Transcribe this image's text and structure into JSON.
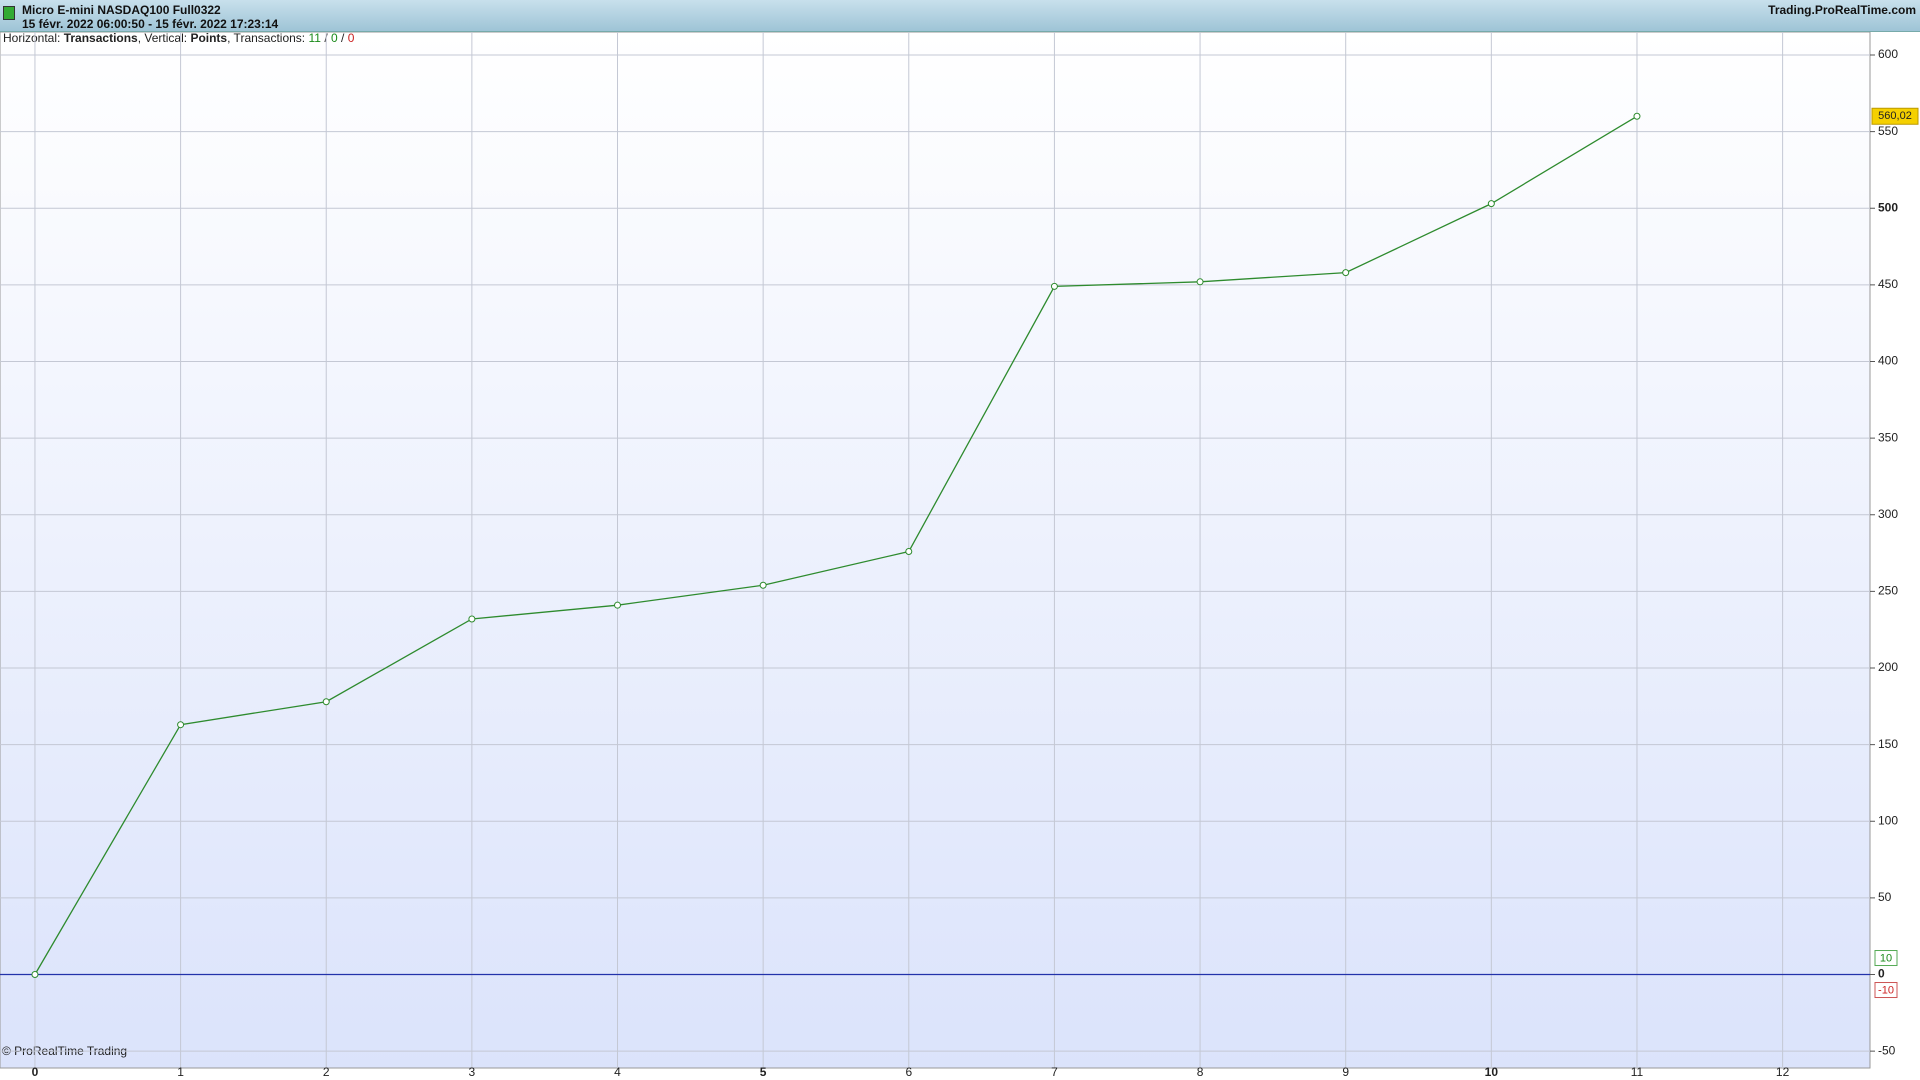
{
  "header": {
    "instrument": "Micro E-mini NASDAQ100 Full0322",
    "period": "15 févr. 2022 06:00:50 - 15 févr. 2022 17:23:14",
    "site": "Trading.ProRealTime.com"
  },
  "info": [
    "Horizontal:",
    "Transactions",
    ", Vertical:",
    "Points",
    ", Transactions:",
    "11",
    "/",
    "0",
    "/",
    "0"
  ],
  "footer": "© ProRealTime Trading",
  "zero_markers": [
    10,
    -10
  ],
  "chart_data": {
    "type": "line",
    "x": [
      0,
      1,
      2,
      3,
      4,
      5,
      6,
      7,
      8,
      9,
      10,
      11
    ],
    "series": [
      {
        "name": "Points",
        "color": "#2e8b2e",
        "values": [
          0,
          163,
          178,
          232,
          241,
          254,
          276,
          449,
          452,
          458,
          503,
          560.02
        ],
        "value_labels": [
          null,
          null,
          null,
          null,
          null,
          null,
          null,
          null,
          null,
          null,
          null,
          "560,02"
        ]
      }
    ],
    "xlim": [
      -0.24,
      12.6
    ],
    "xticks": [
      0,
      1,
      2,
      3,
      4,
      5,
      6,
      7,
      8,
      9,
      10,
      11,
      12
    ],
    "ylim": [
      -61,
      615
    ],
    "yticks": [
      -50,
      0,
      50,
      100,
      150,
      200,
      250,
      300,
      350,
      400,
      450,
      500,
      550,
      600
    ],
    "grid": true,
    "zero_line_color": "#2233aa"
  }
}
